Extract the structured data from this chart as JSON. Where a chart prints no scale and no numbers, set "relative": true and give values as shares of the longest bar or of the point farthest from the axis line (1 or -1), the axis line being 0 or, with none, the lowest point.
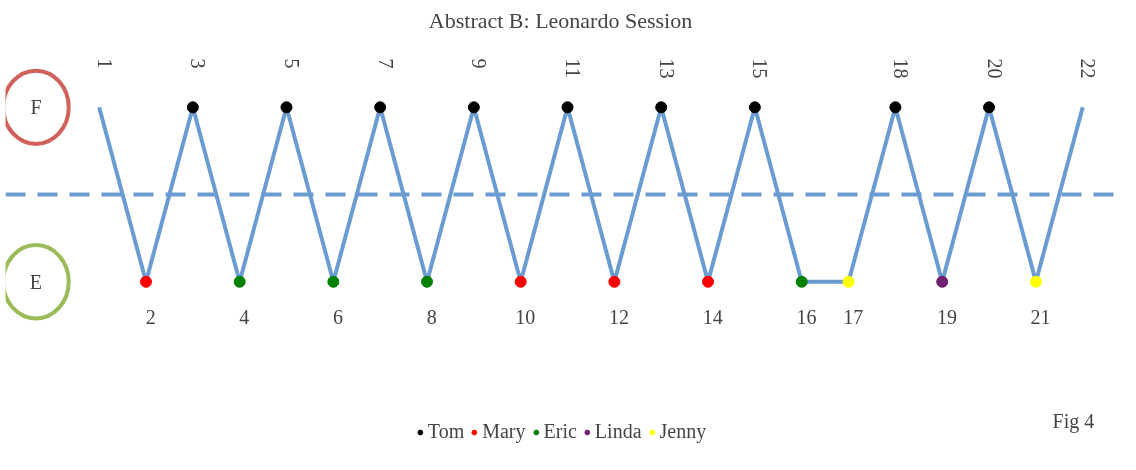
{
  "chart_data": {
    "type": "line",
    "title": "Abstract B: Leonardo Session",
    "relative": true,
    "categories": [
      "1",
      "2",
      "3",
      "4",
      "5",
      "6",
      "7",
      "8",
      "9",
      "10",
      "11",
      "12",
      "13",
      "14",
      "15",
      "16",
      "17",
      "18",
      "19",
      "20",
      "21",
      "22"
    ],
    "series": [
      {
        "color": "#6a9bd1",
        "values": [
          1,
          0,
          1,
          0,
          1,
          0,
          1,
          0,
          1,
          0,
          1,
          0,
          1,
          0,
          1,
          0,
          0,
          1,
          0,
          1,
          0,
          1
        ]
      },
      {
        "type": "scatter",
        "name": "Tom",
        "color": "#000000",
        "x": [
          "3",
          "5",
          "7",
          "9",
          "11",
          "13",
          "15",
          "18",
          "20"
        ],
        "values": [
          1,
          1,
          1,
          1,
          1,
          1,
          1,
          1,
          1
        ]
      },
      {
        "type": "scatter",
        "name": "Mary",
        "color": "#ff0000",
        "x": [
          "2",
          "10",
          "12",
          "14"
        ],
        "values": [
          0,
          0,
          0,
          0
        ]
      },
      {
        "type": "scatter",
        "name": "Eric",
        "color": "#008000",
        "x": [
          "4",
          "6",
          "8",
          "16"
        ],
        "values": [
          0,
          0,
          0,
          0
        ]
      },
      {
        "type": "scatter",
        "name": "Linda",
        "color": "#70206f",
        "x": [
          "19"
        ],
        "values": [
          0
        ]
      },
      {
        "type": "scatter",
        "name": "Jenny",
        "color": "#ffff00",
        "x": [
          "17",
          "21"
        ],
        "values": [
          0,
          0
        ]
      }
    ],
    "ref_lines": [
      {
        "axis": "y",
        "value": 0.5,
        "color": "#6a9bd1",
        "line_style": "dashed"
      }
    ],
    "annotations": [
      "F",
      "E",
      "Fig 4"
    ],
    "legend": "bottom",
    "grid": false
  }
}
